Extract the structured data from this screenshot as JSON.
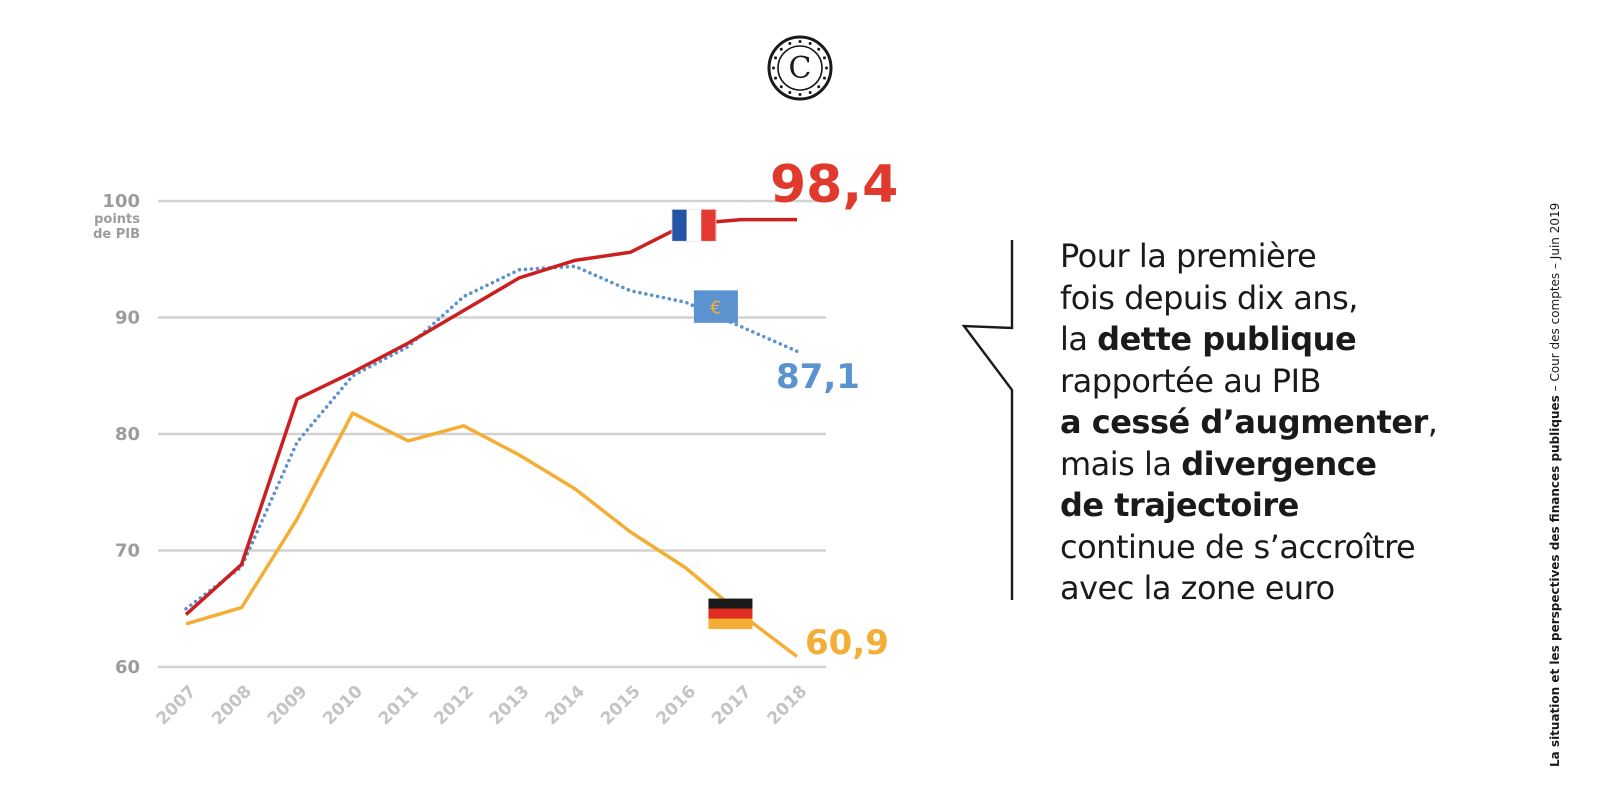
{
  "text_block": {
    "lines": [
      [
        {
          "t": "Pour la première",
          "b": false
        }
      ],
      [
        {
          "t": "fois depuis dix ans,",
          "b": false
        }
      ],
      [
        {
          "t": "la ",
          "b": false
        },
        {
          "t": "dette publique",
          "b": true
        }
      ],
      [
        {
          "t": "rapportée au PIB",
          "b": false
        }
      ],
      [
        {
          "t": "a cessé d’augmenter",
          "b": true
        },
        {
          "t": ",",
          "b": false
        }
      ],
      [
        {
          "t": "mais la ",
          "b": false
        },
        {
          "t": "divergence",
          "b": true
        }
      ],
      [
        {
          "t": "de trajectoire",
          "b": true
        }
      ],
      [
        {
          "t": "continue de s’accroître",
          "b": false
        }
      ],
      [
        {
          "t": "avec la zone euro",
          "b": false
        }
      ]
    ]
  },
  "side_caption": {
    "bold": "La situation et les perspectives des finances publiques",
    "rest": " – Cour des comptes – Juin 2019"
  },
  "logo": {
    "letter": "C"
  },
  "chart_data": {
    "type": "line",
    "x": [
      "2007",
      "2008",
      "2009",
      "2010",
      "2011",
      "2012",
      "2013",
      "2014",
      "2015",
      "2016",
      "2017",
      "2018"
    ],
    "ylim": [
      60,
      100
    ],
    "yticks": [
      60,
      70,
      80,
      90,
      100
    ],
    "ytick_labels": [
      "60",
      "70",
      "80",
      "90",
      "100"
    ],
    "ylabel_unit": [
      "points",
      "de PIB"
    ],
    "grid": true,
    "series": [
      {
        "key": "france",
        "color": "#cc1f1f",
        "style": "solid",
        "end_label": "98,4",
        "end_label_color": "#e03a2f",
        "values": [
          64.5,
          68.8,
          83.0,
          85.3,
          87.8,
          90.6,
          93.4,
          94.9,
          95.6,
          98.0,
          98.4,
          98.4
        ]
      },
      {
        "key": "zone_euro",
        "color": "#5b92d0",
        "style": "dotted",
        "end_label": "87,1",
        "end_label_color": "#5b92d0",
        "values": [
          65.0,
          68.6,
          79.3,
          85.0,
          87.5,
          91.8,
          94.1,
          94.4,
          92.3,
          91.3,
          89.2,
          87.1
        ]
      },
      {
        "key": "allemagne",
        "color": "#f4ae35",
        "style": "solid",
        "end_label": "60,9",
        "end_label_color": "#f4ae35",
        "values": [
          63.7,
          65.1,
          72.7,
          81.8,
          79.4,
          80.7,
          78.2,
          75.3,
          71.6,
          68.5,
          64.5,
          60.9
        ]
      }
    ],
    "markers": [
      {
        "key": "france",
        "icon": "france-flag-icon",
        "colors": [
          "#2454a6",
          "#ffffff",
          "#e53a33"
        ]
      },
      {
        "key": "zone_euro",
        "icon": "euro-flag-icon",
        "colors": [
          "#5b92d0",
          "#f4ae35"
        ],
        "symbol": "€"
      },
      {
        "key": "allemagne",
        "icon": "germany-flag-icon",
        "colors": [
          "#1a1a1a",
          "#e02b20",
          "#f4ae35"
        ]
      }
    ]
  }
}
